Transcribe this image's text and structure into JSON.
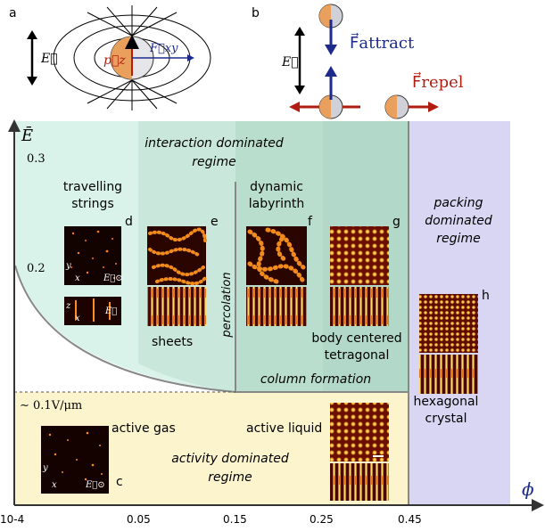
{
  "panels": {
    "a": "a",
    "b": "b",
    "c": "c",
    "d": "d",
    "e": "e",
    "f": "f",
    "g": "g",
    "h": "h"
  },
  "panel_a": {
    "field_label": "E⃗",
    "dipole_label": "p⃗z",
    "force_label": "F⃗xy"
  },
  "panel_b": {
    "field_label": "E⃗",
    "attract_label": "F⃗attract",
    "repel_label": "F⃗repel"
  },
  "axes": {
    "y_label": "Ē",
    "x_label": "ϕ",
    "y_ticks": [
      "0.3",
      "0.2",
      "∼ 0.1V/μm"
    ],
    "x_ticks": [
      "10-4",
      "0.05",
      "0.15",
      "0.25",
      "0.45"
    ]
  },
  "regimes": {
    "interaction": [
      "interaction dominated",
      "regime"
    ],
    "packing": [
      "packing",
      "dominated",
      "regime"
    ],
    "activity": [
      "activity dominated",
      "regime"
    ]
  },
  "phases": {
    "travelling_strings": [
      "travelling",
      "strings"
    ],
    "sheets": "sheets",
    "percolation": "percolation",
    "dynamic_labyrinth": [
      "dynamic",
      "labyrinth"
    ],
    "body_centered": [
      "body centered",
      "tetragonal"
    ],
    "column_formation": "column formation",
    "hexagonal": [
      "hexagonal",
      "crystal"
    ],
    "active_gas": "active gas",
    "active_liquid": "active liquid"
  },
  "inset_labels": {
    "y": "y",
    "x": "x",
    "z": "z",
    "field_out": "E⃗⊙",
    "field_up": "E⃗"
  },
  "colors": {
    "yellow_region": "#fbf4cc",
    "teal_region": "#d9f3ea",
    "teal_mid": "#c6e6d9",
    "green_region": "#b7dccb",
    "lavender_region": "#d8d6f2",
    "arrow_blue": "#1c2a8c",
    "arrow_red": "#b01e12",
    "particle_orange": "#e8a05c"
  }
}
